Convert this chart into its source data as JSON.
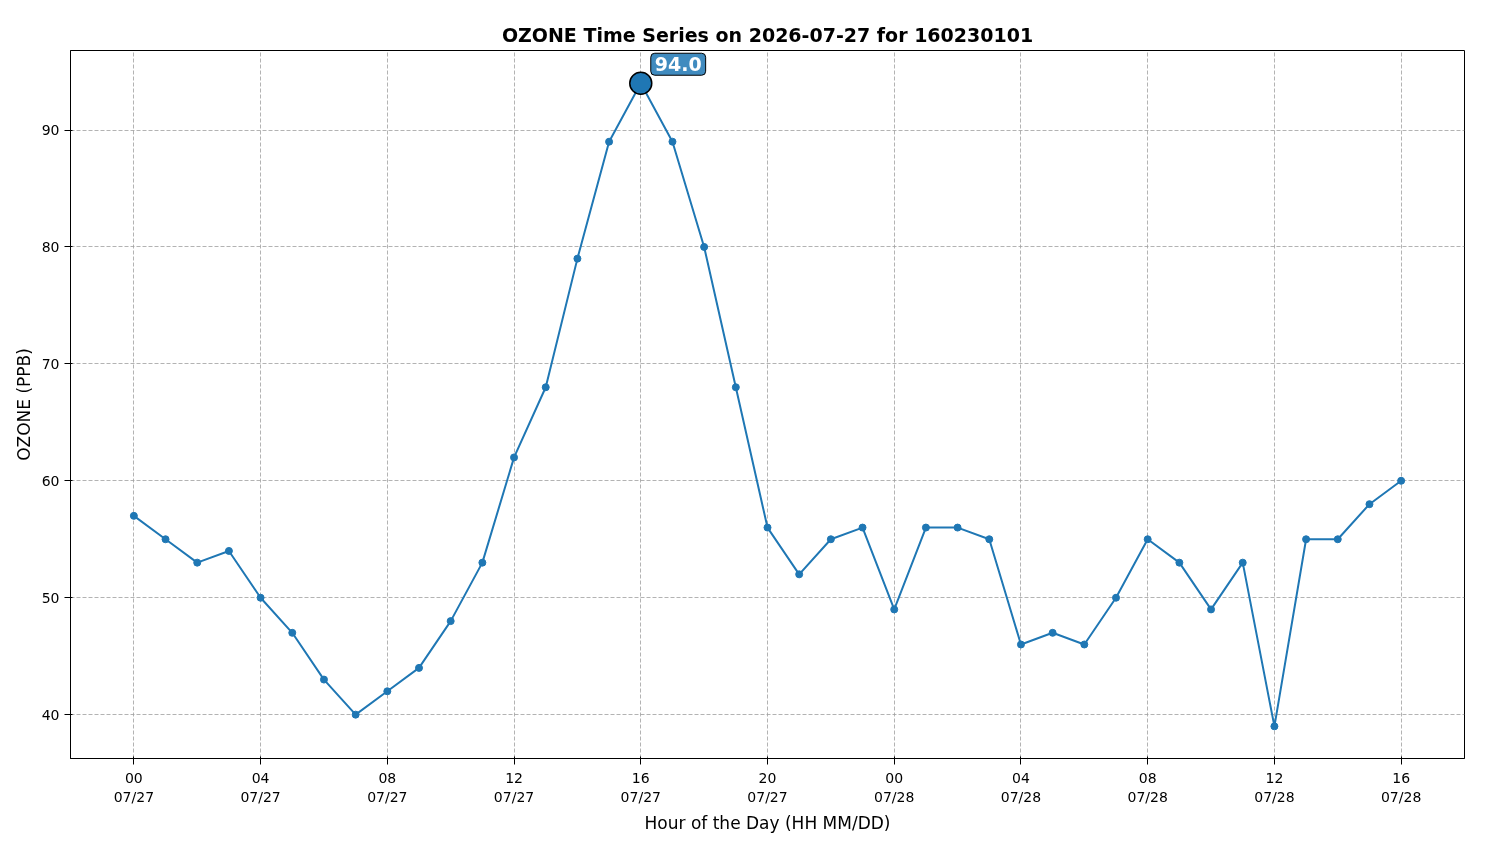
{
  "chart_data": {
    "type": "line",
    "title": "OZONE Time Series on 2026-07-27 for 160230101",
    "xlabel": "Hour of the Day (HH MM/DD)",
    "ylabel": "OZONE (PPB)",
    "x": [
      "2026-07-27T00:00",
      "2026-07-27T01:00",
      "2026-07-27T02:00",
      "2026-07-27T03:00",
      "2026-07-27T04:00",
      "2026-07-27T05:00",
      "2026-07-27T06:00",
      "2026-07-27T07:00",
      "2026-07-27T08:00",
      "2026-07-27T09:00",
      "2026-07-27T10:00",
      "2026-07-27T11:00",
      "2026-07-27T12:00",
      "2026-07-27T13:00",
      "2026-07-27T14:00",
      "2026-07-27T15:00",
      "2026-07-27T16:00",
      "2026-07-27T17:00",
      "2026-07-27T18:00",
      "2026-07-27T19:00",
      "2026-07-27T20:00",
      "2026-07-27T21:00",
      "2026-07-27T22:00",
      "2026-07-27T23:00",
      "2026-07-28T00:00",
      "2026-07-28T01:00",
      "2026-07-28T02:00",
      "2026-07-28T03:00",
      "2026-07-28T04:00",
      "2026-07-28T05:00",
      "2026-07-28T06:00",
      "2026-07-28T07:00",
      "2026-07-28T08:00",
      "2026-07-28T09:00",
      "2026-07-28T10:00",
      "2026-07-28T11:00",
      "2026-07-28T12:00",
      "2026-07-28T13:00",
      "2026-07-28T14:00",
      "2026-07-28T15:00",
      "2026-07-28T16:00"
    ],
    "series": [
      {
        "color": "#1f77b4",
        "values": [
          57,
          55,
          53,
          54,
          50,
          47,
          43,
          40,
          42,
          44,
          48,
          53,
          62,
          68,
          79,
          89,
          94,
          89,
          80,
          68,
          56,
          52,
          55,
          56,
          49,
          56,
          56,
          55,
          46,
          47,
          46,
          50,
          55,
          53,
          49,
          53,
          39,
          55,
          55,
          58,
          60
        ]
      }
    ],
    "xlim": [
      "2026-07-26T22:00",
      "2026-07-28T18:00"
    ],
    "xticks": [
      {
        "value": "2026-07-27T00:00",
        "label": "00\n07/27"
      },
      {
        "value": "2026-07-27T04:00",
        "label": "04\n07/27"
      },
      {
        "value": "2026-07-27T08:00",
        "label": "08\n07/27"
      },
      {
        "value": "2026-07-27T12:00",
        "label": "12\n07/27"
      },
      {
        "value": "2026-07-27T16:00",
        "label": "16\n07/27"
      },
      {
        "value": "2026-07-27T20:00",
        "label": "20\n07/27"
      },
      {
        "value": "2026-07-28T00:00",
        "label": "00\n07/28"
      },
      {
        "value": "2026-07-28T04:00",
        "label": "04\n07/28"
      },
      {
        "value": "2026-07-28T08:00",
        "label": "08\n07/28"
      },
      {
        "value": "2026-07-28T12:00",
        "label": "12\n07/28"
      },
      {
        "value": "2026-07-28T16:00",
        "label": "16\n07/28"
      }
    ],
    "ylim": [
      36.25,
      96.8
    ],
    "yticks": [
      40,
      50,
      60,
      70,
      80,
      90
    ],
    "annotations": [
      {
        "text": "94.0",
        "x": "2026-07-27T16:00",
        "y": 94
      }
    ],
    "grid": true,
    "marker": "circle",
    "line_style": "solid"
  }
}
